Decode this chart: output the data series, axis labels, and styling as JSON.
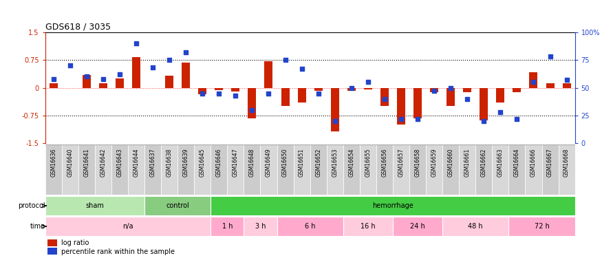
{
  "title": "GDS618 / 3035",
  "samples": [
    "GSM16636",
    "GSM16640",
    "GSM16641",
    "GSM16642",
    "GSM16643",
    "GSM16644",
    "GSM16637",
    "GSM16638",
    "GSM16639",
    "GSM16645",
    "GSM16646",
    "GSM16647",
    "GSM16648",
    "GSM16649",
    "GSM16650",
    "GSM16651",
    "GSM16652",
    "GSM16653",
    "GSM16654",
    "GSM16655",
    "GSM16656",
    "GSM16657",
    "GSM16658",
    "GSM16659",
    "GSM16660",
    "GSM16661",
    "GSM16662",
    "GSM16663",
    "GSM16664",
    "GSM16666",
    "GSM16667",
    "GSM16668"
  ],
  "log_ratio": [
    0.12,
    0.0,
    0.35,
    0.12,
    0.25,
    0.83,
    0.0,
    0.32,
    0.68,
    -0.18,
    -0.06,
    -0.1,
    -0.82,
    0.72,
    -0.5,
    -0.4,
    -0.08,
    -1.18,
    -0.08,
    -0.04,
    -0.5,
    -1.0,
    -0.82,
    -0.12,
    -0.5,
    -0.12,
    -0.88,
    -0.4,
    -0.12,
    0.42,
    0.12,
    0.12
  ],
  "percentile": [
    58,
    70,
    60,
    58,
    62,
    90,
    68,
    75,
    82,
    45,
    45,
    43,
    30,
    45,
    75,
    67,
    45,
    20,
    50,
    55,
    40,
    22,
    22,
    47,
    50,
    40,
    20,
    28,
    22,
    55,
    78,
    57
  ],
  "protocol_groups": [
    {
      "label": "sham",
      "start": 0,
      "end": 5,
      "color": "#b8e8b0"
    },
    {
      "label": "control",
      "start": 6,
      "end": 9,
      "color": "#88cc80"
    },
    {
      "label": "hemorrhage",
      "start": 10,
      "end": 31,
      "color": "#44cc44"
    }
  ],
  "time_groups": [
    {
      "label": "n/a",
      "start": 0,
      "end": 9,
      "color": "#ffccdd"
    },
    {
      "label": "1 h",
      "start": 10,
      "end": 11,
      "color": "#ffaacc"
    },
    {
      "label": "3 h",
      "start": 12,
      "end": 13,
      "color": "#ffccdd"
    },
    {
      "label": "6 h",
      "start": 14,
      "end": 17,
      "color": "#ffaacc"
    },
    {
      "label": "16 h",
      "start": 18,
      "end": 20,
      "color": "#ffccdd"
    },
    {
      "label": "24 h",
      "start": 21,
      "end": 23,
      "color": "#ffaacc"
    },
    {
      "label": "48 h",
      "start": 24,
      "end": 27,
      "color": "#ffccdd"
    },
    {
      "label": "72 h",
      "start": 28,
      "end": 31,
      "color": "#ffaacc"
    }
  ],
  "ylim": [
    -1.5,
    1.5
  ],
  "yticks_left": [
    -1.5,
    -0.75,
    0.0,
    0.75,
    1.5
  ],
  "yticks_right": [
    0,
    25,
    50,
    75,
    100
  ],
  "bar_color": "#cc2200",
  "scatter_color": "#2244cc",
  "title_fontsize": 9,
  "ylabel_left_color": "#cc2200",
  "ylabel_right_color": "#2244cc",
  "label_bg_color": "#cccccc",
  "label_border_color": "#aaaaaa"
}
